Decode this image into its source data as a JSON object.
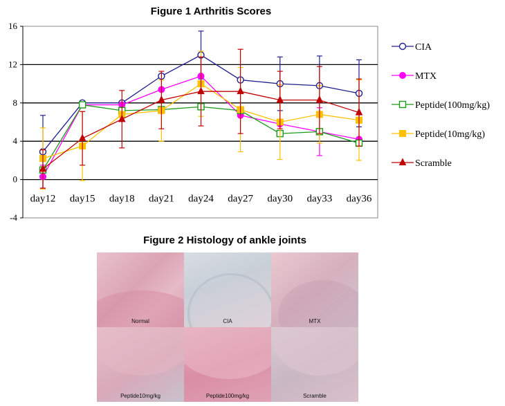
{
  "figure1": {
    "title": "Figure 1   Arthritis Scores"
  },
  "figure2": {
    "title": "Figure 2   Histology of ankle joints",
    "panels": [
      "Normal",
      "CIA",
      "MTX",
      "Peptide10mg/kg",
      "Peptide100mg/kg",
      "Scramble"
    ]
  },
  "chart_data": {
    "type": "line",
    "title": "Figure 1   Arthritis Scores",
    "xlabel": "",
    "ylabel": "",
    "categories": [
      "day12",
      "day15",
      "day18",
      "day21",
      "day24",
      "day27",
      "day30",
      "day33",
      "day36"
    ],
    "ylim": [
      -4,
      16
    ],
    "yticks": [
      -4,
      0,
      4,
      8,
      12,
      16
    ],
    "grid": "horizontal",
    "legend_position": "right",
    "series": [
      {
        "name": "CIA",
        "color": "#1f1f8f",
        "marker": "circle-open",
        "values": [
          2.9,
          8.0,
          8.0,
          10.8,
          13.0,
          10.4,
          10.0,
          9.8,
          9.0
        ],
        "errors": [
          3.8,
          0.0,
          0.0,
          0.0,
          2.5,
          0.0,
          2.8,
          3.1,
          3.5
        ]
      },
      {
        "name": "MTX",
        "color": "#ff00ff",
        "marker": "circle-filled",
        "values": [
          0.3,
          7.8,
          7.8,
          9.4,
          10.8,
          6.7,
          5.8,
          5.0,
          4.2
        ],
        "errors": [
          1.2,
          0.0,
          0.0,
          0.0,
          0.0,
          0.0,
          0.0,
          2.5,
          0.0
        ]
      },
      {
        "name": "Peptide(100mg/kg)",
        "color": "#1a9a1a",
        "marker": "square-open",
        "values": [
          1.0,
          7.8,
          7.2,
          7.3,
          7.6,
          7.2,
          4.8,
          5.0,
          3.8
        ],
        "errors": [
          0.0,
          0.0,
          0.0,
          0.0,
          0.0,
          0.0,
          0.0,
          0.0,
          0.0
        ]
      },
      {
        "name": "Peptide(10mg/kg)",
        "color": "#ffc000",
        "marker": "square-filled",
        "values": [
          2.2,
          3.5,
          6.8,
          7.2,
          10.0,
          7.3,
          6.0,
          6.8,
          6.2
        ],
        "errors": [
          3.2,
          3.6,
          0.0,
          3.2,
          3.4,
          4.4,
          3.9,
          3.0,
          4.2
        ]
      },
      {
        "name": "Scramble",
        "color": "#c00000",
        "marker": "triangle",
        "values": [
          1.1,
          4.3,
          6.3,
          8.3,
          9.2,
          9.2,
          8.3,
          8.3,
          7.0
        ],
        "errors": [
          2.0,
          2.8,
          3.0,
          3.0,
          3.6,
          4.4,
          3.0,
          3.5,
          3.5
        ]
      }
    ]
  }
}
